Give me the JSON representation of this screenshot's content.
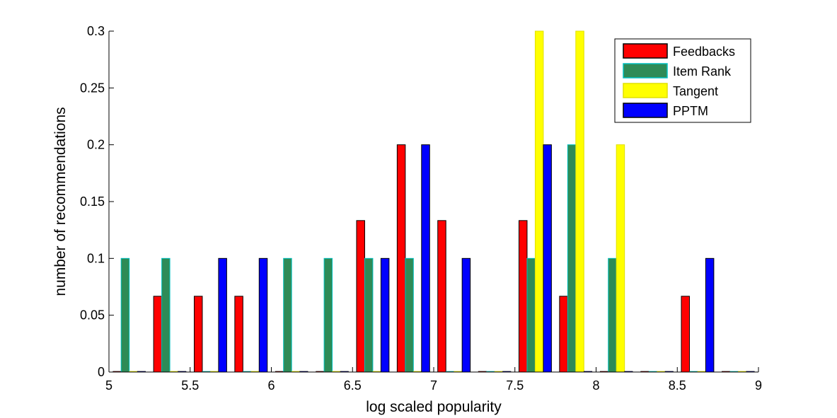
{
  "chart_data": {
    "type": "bar",
    "xlabel": "log scaled popularity",
    "ylabel": "number of recommendations",
    "xlim": [
      5,
      9
    ],
    "ylim": [
      0,
      0.3
    ],
    "xticks": [
      "5",
      "5.5",
      "6",
      "6.5",
      "7",
      "7.5",
      "8",
      "8.5",
      "9"
    ],
    "yticks": [
      "0",
      "0.05",
      "0.1",
      "0.15",
      "0.2",
      "0.25",
      "0.3"
    ],
    "grid": false,
    "legend_position": "top-right",
    "bin_centers": [
      5.125,
      5.375,
      5.625,
      5.875,
      6.125,
      6.375,
      6.625,
      6.875,
      7.125,
      7.375,
      7.625,
      7.875,
      8.125,
      8.375,
      8.625,
      8.875
    ],
    "series": [
      {
        "name": "Feedbacks",
        "color": "#ff0000",
        "edge": "#000000",
        "values": [
          0,
          0.0667,
          0.0667,
          0.0667,
          0,
          0,
          0.1333,
          0.2,
          0.1333,
          0,
          0.1333,
          0.0667,
          0,
          0,
          0.0667,
          0
        ]
      },
      {
        "name": "Item Rank",
        "color": "#2e8b57",
        "edge": "#00c0c0",
        "values": [
          0.1,
          0.1,
          0,
          0,
          0.1,
          0.1,
          0.1,
          0.1,
          0,
          0,
          0.1,
          0.2,
          0.1,
          0,
          0,
          0
        ]
      },
      {
        "name": "Tangent",
        "color": "#ffff00",
        "edge": "#e0e000",
        "values": [
          0,
          0,
          0,
          0,
          0,
          0,
          0,
          0,
          0,
          0,
          0.3,
          0.3,
          0.2,
          0,
          0,
          0
        ]
      },
      {
        "name": "PPTM",
        "color": "#0000ff",
        "edge": "#000000",
        "values": [
          0,
          0,
          0.1,
          0.1,
          0,
          0,
          0.1,
          0.2,
          0.1,
          0,
          0.2,
          0,
          0,
          0,
          0.1,
          0
        ]
      }
    ]
  }
}
